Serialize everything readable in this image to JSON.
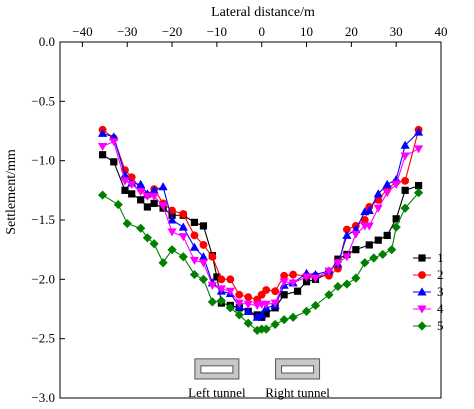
{
  "chart_data": {
    "type": "line",
    "xlabel": "Lateral distance/m",
    "ylabel": "Settlement/mm",
    "x_ticks": [
      "−40",
      "−30",
      "−20",
      "−10",
      "0",
      "10",
      "20",
      "30",
      "40"
    ],
    "y_ticks": [
      "0.0",
      "−0.5",
      "−1.0",
      "−1.5",
      "−2.0",
      "−2.5",
      "−3.0"
    ],
    "xlim": [
      -45,
      40
    ],
    "ylim": [
      -3.0,
      0.0
    ],
    "x_axis_position": "top",
    "grid": false,
    "legend_position": "right",
    "series": [
      {
        "name": "1",
        "color": "#000000",
        "marker": "square",
        "points": [
          [
            -35.5,
            -0.95
          ],
          [
            -33,
            -1.01
          ],
          [
            -30.5,
            -1.25
          ],
          [
            -29,
            -1.28
          ],
          [
            -27,
            -1.33
          ],
          [
            -25.5,
            -1.39
          ],
          [
            -24,
            -1.36
          ],
          [
            -22,
            -1.4
          ],
          [
            -20,
            -1.46
          ],
          [
            -17.5,
            -1.46
          ],
          [
            -15,
            -1.52
          ],
          [
            -13,
            -1.55
          ],
          [
            -11,
            -1.8
          ],
          [
            -10,
            -1.98
          ],
          [
            -9,
            -2.2
          ],
          [
            -7,
            -2.22
          ],
          [
            -5,
            -2.24
          ],
          [
            -3,
            -2.27
          ],
          [
            -1,
            -2.3
          ],
          [
            0,
            -2.32
          ],
          [
            1,
            -2.29
          ],
          [
            3,
            -2.24
          ],
          [
            5,
            -2.13
          ],
          [
            8,
            -2.1
          ],
          [
            10,
            -2.02
          ],
          [
            12,
            -2.0
          ],
          [
            15,
            -1.95
          ],
          [
            17,
            -1.83
          ],
          [
            19,
            -1.79
          ],
          [
            21,
            -1.75
          ],
          [
            24,
            -1.71
          ],
          [
            26,
            -1.67
          ],
          [
            28,
            -1.63
          ],
          [
            30,
            -1.49
          ],
          [
            32,
            -1.25
          ],
          [
            35,
            -1.21
          ]
        ]
      },
      {
        "name": "2",
        "color": "#ff0000",
        "marker": "circle",
        "points": [
          [
            -35.5,
            -0.74
          ],
          [
            -33,
            -0.81
          ],
          [
            -30.5,
            -1.08
          ],
          [
            -29,
            -1.14
          ],
          [
            -27,
            -1.24
          ],
          [
            -25.5,
            -1.29
          ],
          [
            -24,
            -1.24
          ],
          [
            -22,
            -1.36
          ],
          [
            -20,
            -1.42
          ],
          [
            -17.5,
            -1.45
          ],
          [
            -15,
            -1.63
          ],
          [
            -13,
            -1.71
          ],
          [
            -11,
            -1.81
          ],
          [
            -9,
            -2.0
          ],
          [
            -7,
            -2.0
          ],
          [
            -5,
            -2.13
          ],
          [
            -3,
            -2.15
          ],
          [
            -1,
            -2.17
          ],
          [
            0,
            -2.13
          ],
          [
            1,
            -2.09
          ],
          [
            3,
            -2.1
          ],
          [
            5,
            -1.97
          ],
          [
            7,
            -1.96
          ],
          [
            10,
            -1.97
          ],
          [
            12,
            -1.97
          ],
          [
            15,
            -1.97
          ],
          [
            17,
            -1.91
          ],
          [
            19,
            -1.58
          ],
          [
            21,
            -1.55
          ],
          [
            23,
            -1.5
          ],
          [
            24,
            -1.39
          ],
          [
            26,
            -1.33
          ],
          [
            28,
            -1.24
          ],
          [
            30,
            -1.18
          ],
          [
            32,
            -1.17
          ],
          [
            35,
            -0.74
          ]
        ]
      },
      {
        "name": "3",
        "color": "#0000ff",
        "marker": "triangle-up",
        "points": [
          [
            -35.5,
            -0.77
          ],
          [
            -33,
            -0.8
          ],
          [
            -30.5,
            -1.12
          ],
          [
            -29,
            -1.19
          ],
          [
            -27,
            -1.2
          ],
          [
            -25.5,
            -1.28
          ],
          [
            -24,
            -1.25
          ],
          [
            -22,
            -1.22
          ],
          [
            -20,
            -1.5
          ],
          [
            -17.5,
            -1.56
          ],
          [
            -15,
            -1.73
          ],
          [
            -13,
            -1.81
          ],
          [
            -11,
            -2.03
          ],
          [
            -9,
            -2.1
          ],
          [
            -7,
            -2.12
          ],
          [
            -5,
            -2.23
          ],
          [
            -3,
            -2.27
          ],
          [
            -1,
            -2.32
          ],
          [
            0,
            -2.3
          ],
          [
            1,
            -2.24
          ],
          [
            3,
            -2.22
          ],
          [
            5,
            -2.05
          ],
          [
            7,
            -2.03
          ],
          [
            10,
            -1.95
          ],
          [
            12,
            -1.96
          ],
          [
            15,
            -1.93
          ],
          [
            17,
            -1.87
          ],
          [
            19,
            -1.63
          ],
          [
            21,
            -1.58
          ],
          [
            23,
            -1.43
          ],
          [
            24,
            -1.42
          ],
          [
            26,
            -1.28
          ],
          [
            28,
            -1.2
          ],
          [
            30,
            -1.16
          ],
          [
            32,
            -0.87
          ],
          [
            35,
            -0.76
          ]
        ]
      },
      {
        "name": "4",
        "color": "#ff00ff",
        "marker": "triangle-down",
        "points": [
          [
            -35.5,
            -0.88
          ],
          [
            -33,
            -0.84
          ],
          [
            -30.5,
            -1.17
          ],
          [
            -29,
            -1.2
          ],
          [
            -27,
            -1.26
          ],
          [
            -25.5,
            -1.3
          ],
          [
            -24,
            -1.3
          ],
          [
            -22,
            -1.38
          ],
          [
            -20,
            -1.6
          ],
          [
            -17.5,
            -1.64
          ],
          [
            -15,
            -1.84
          ],
          [
            -13,
            -1.86
          ],
          [
            -11,
            -2.05
          ],
          [
            -9,
            -2.08
          ],
          [
            -7,
            -2.1
          ],
          [
            -5,
            -2.2
          ],
          [
            -3,
            -2.21
          ],
          [
            -1,
            -2.22
          ],
          [
            0,
            -2.21
          ],
          [
            1,
            -2.21
          ],
          [
            3,
            -2.2
          ],
          [
            5,
            -2.02
          ],
          [
            7,
            -2.03
          ],
          [
            10,
            -1.98
          ],
          [
            12,
            -1.99
          ],
          [
            15,
            -1.93
          ],
          [
            17,
            -1.86
          ],
          [
            19,
            -1.81
          ],
          [
            21,
            -1.62
          ],
          [
            23,
            -1.55
          ],
          [
            24,
            -1.55
          ],
          [
            26,
            -1.4
          ],
          [
            28,
            -1.27
          ],
          [
            30,
            -1.2
          ],
          [
            32,
            -0.96
          ],
          [
            35,
            -0.9
          ]
        ]
      },
      {
        "name": "5",
        "color": "#008000",
        "marker": "diamond",
        "points": [
          [
            -35.5,
            -1.29
          ],
          [
            -32,
            -1.37
          ],
          [
            -30,
            -1.53
          ],
          [
            -27,
            -1.57
          ],
          [
            -25.5,
            -1.65
          ],
          [
            -24,
            -1.7
          ],
          [
            -22,
            -1.86
          ],
          [
            -20,
            -1.75
          ],
          [
            -17.5,
            -1.81
          ],
          [
            -15,
            -1.96
          ],
          [
            -13,
            -2.0
          ],
          [
            -11,
            -2.19
          ],
          [
            -9,
            -2.18
          ],
          [
            -7,
            -2.24
          ],
          [
            -5,
            -2.3
          ],
          [
            -3,
            -2.37
          ],
          [
            -1,
            -2.43
          ],
          [
            0,
            -2.42
          ],
          [
            1,
            -2.42
          ],
          [
            3,
            -2.38
          ],
          [
            5,
            -2.34
          ],
          [
            7,
            -2.32
          ],
          [
            10,
            -2.27
          ],
          [
            12,
            -2.22
          ],
          [
            15,
            -2.13
          ],
          [
            17,
            -2.06
          ],
          [
            19,
            -2.04
          ],
          [
            21,
            -1.99
          ],
          [
            23,
            -1.86
          ],
          [
            25,
            -1.82
          ],
          [
            27,
            -1.79
          ],
          [
            29,
            -1.75
          ],
          [
            30,
            -1.56
          ],
          [
            32,
            -1.4
          ],
          [
            35,
            -1.27
          ]
        ]
      }
    ],
    "annotations": [
      {
        "text": "Left tunnel",
        "kind": "tunnel-box",
        "x_center": -10,
        "y_top": -2.67,
        "y_bottom": -3.0
      },
      {
        "text": "Right tunnel",
        "kind": "tunnel-box",
        "x_center": 8,
        "y_top": -2.67,
        "y_bottom": -3.0
      }
    ]
  }
}
